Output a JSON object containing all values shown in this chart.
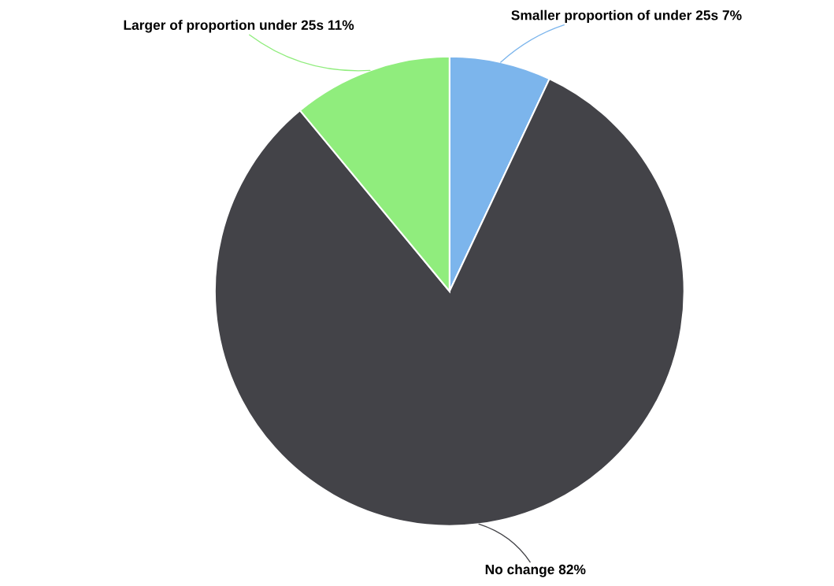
{
  "chart_data": {
    "type": "pie",
    "categories": [
      "Smaller proportion of under 25s",
      "No change",
      "Larger of proportion under 25s"
    ],
    "values": [
      7,
      82,
      11
    ],
    "value_labels": [
      "7%",
      "82%",
      "11%"
    ],
    "colors": [
      "#7cb5ec",
      "#434348",
      "#90ed7d"
    ]
  }
}
